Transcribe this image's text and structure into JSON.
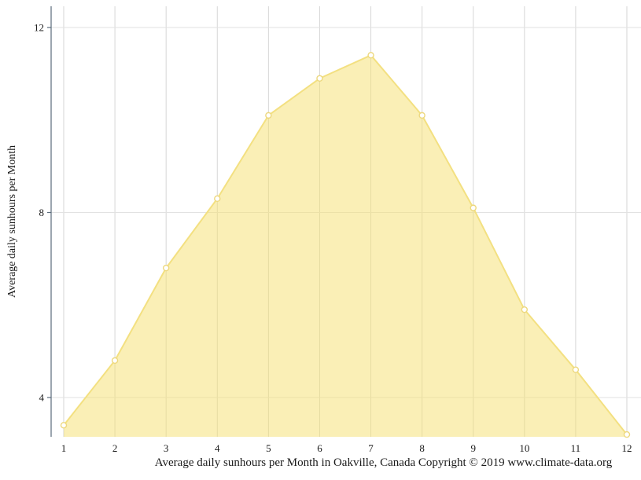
{
  "chart_data": {
    "type": "area",
    "title": "",
    "xlabel": "Average daily sunhours per Month in Oakville, Canada Copyright © 2019 www.climate-data.org",
    "ylabel": "Average daily sunhours per Month",
    "series_name": "Average daily sunhours",
    "categories": [
      "1",
      "2",
      "3",
      "4",
      "5",
      "6",
      "7",
      "8",
      "9",
      "10",
      "11",
      "12"
    ],
    "x": [
      1,
      2,
      3,
      4,
      5,
      6,
      7,
      8,
      9,
      10,
      11,
      12
    ],
    "values": [
      3.4,
      4.8,
      6.8,
      8.3,
      10.1,
      10.9,
      11.4,
      10.1,
      8.1,
      5.9,
      4.6,
      3.2
    ],
    "yticks": [
      4,
      8,
      12
    ],
    "ylim": [
      3.15,
      12.45
    ],
    "grid": "on",
    "legend": "none",
    "colors": {
      "area_fill": "#F5DF6E",
      "line": "#F3E081",
      "marker_fill": "#FFFFFF",
      "marker_stroke": "#EDD87E",
      "gridline": "#D6D6D6",
      "gridline_h": "#E2E2E2",
      "axis": "#5A6B7C",
      "text": "#1A1A1A"
    }
  }
}
